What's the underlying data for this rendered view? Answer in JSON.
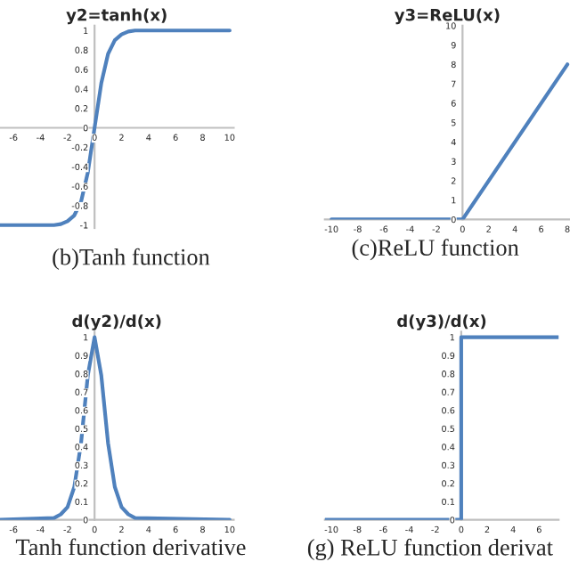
{
  "chart_data": [
    {
      "type": "line",
      "title": "y2=tanh(x)",
      "annotations": [
        "(b)Tanh function"
      ],
      "xlim": [
        -7,
        10.3
      ],
      "ylim": [
        -1.03,
        1.05
      ],
      "xticks": [
        -6,
        -4,
        -2,
        0,
        2,
        4,
        6,
        8,
        10
      ],
      "yticks": [
        -1,
        -0.8,
        -0.6,
        -0.4,
        -0.2,
        0,
        0.2,
        0.4,
        0.6,
        0.8,
        1
      ],
      "series": [
        {
          "color": "#4f81bd",
          "x": [
            -7,
            -3,
            -2.5,
            -2,
            -1.5,
            -1,
            -0.5,
            0,
            0.5,
            1,
            1.5,
            2,
            2.5,
            3,
            10
          ],
          "values": [
            -1,
            -1,
            -0.99,
            -0.96,
            -0.9,
            -0.76,
            -0.46,
            0,
            0.46,
            0.76,
            0.9,
            0.96,
            0.99,
            1,
            1
          ]
        }
      ]
    },
    {
      "type": "line",
      "title": "y3=ReLU(x)",
      "annotations": [
        "(c)ReLU function"
      ],
      "xlim": [
        -10.5,
        8.2
      ],
      "ylim": [
        0,
        10
      ],
      "xticks": [
        -10,
        -8,
        -6,
        -4,
        -2,
        0,
        2,
        4,
        6,
        8
      ],
      "yticks": [
        0,
        1,
        2,
        3,
        4,
        5,
        6,
        7,
        8,
        9,
        10
      ],
      "series": [
        {
          "color": "#4f81bd",
          "x": [
            -10,
            0,
            8
          ],
          "values": [
            0,
            0,
            8
          ]
        }
      ]
    },
    {
      "type": "line",
      "title": "d(y2)/d(x)",
      "annotations": [
        "Tanh function derivative"
      ],
      "xlim": [
        -7,
        10.3
      ],
      "ylim": [
        0,
        1.03
      ],
      "xticks": [
        -6,
        -4,
        -2,
        0,
        2,
        4,
        6,
        8,
        10
      ],
      "yticks": [
        0,
        0.1,
        0.2,
        0.3,
        0.4,
        0.5,
        0.6,
        0.7,
        0.8,
        0.9,
        1
      ],
      "series": [
        {
          "color": "#4f81bd",
          "x": [
            -7,
            -3,
            -2.5,
            -2,
            -1.5,
            -1,
            -0.5,
            0,
            0.5,
            1,
            1.5,
            2,
            2.5,
            3,
            10
          ],
          "values": [
            0,
            0.01,
            0.03,
            0.07,
            0.18,
            0.42,
            0.79,
            1,
            0.79,
            0.42,
            0.18,
            0.07,
            0.03,
            0.01,
            0
          ]
        }
      ]
    },
    {
      "type": "step",
      "title": "d(y3)/d(x)",
      "annotations": [
        "(g) ReLU function derivat"
      ],
      "xlim": [
        -10.5,
        7.5
      ],
      "ylim": [
        0,
        1.03
      ],
      "xticks": [
        -10,
        -8,
        -6,
        -4,
        -2,
        0,
        2,
        4,
        6
      ],
      "yticks": [
        0,
        0.1,
        0.2,
        0.3,
        0.4,
        0.5,
        0.6,
        0.7,
        0.8,
        0.9,
        1
      ],
      "series": [
        {
          "color": "#4f81bd",
          "x": [
            -10.5,
            0,
            7.5
          ],
          "values": [
            0,
            1,
            1
          ]
        }
      ]
    }
  ]
}
